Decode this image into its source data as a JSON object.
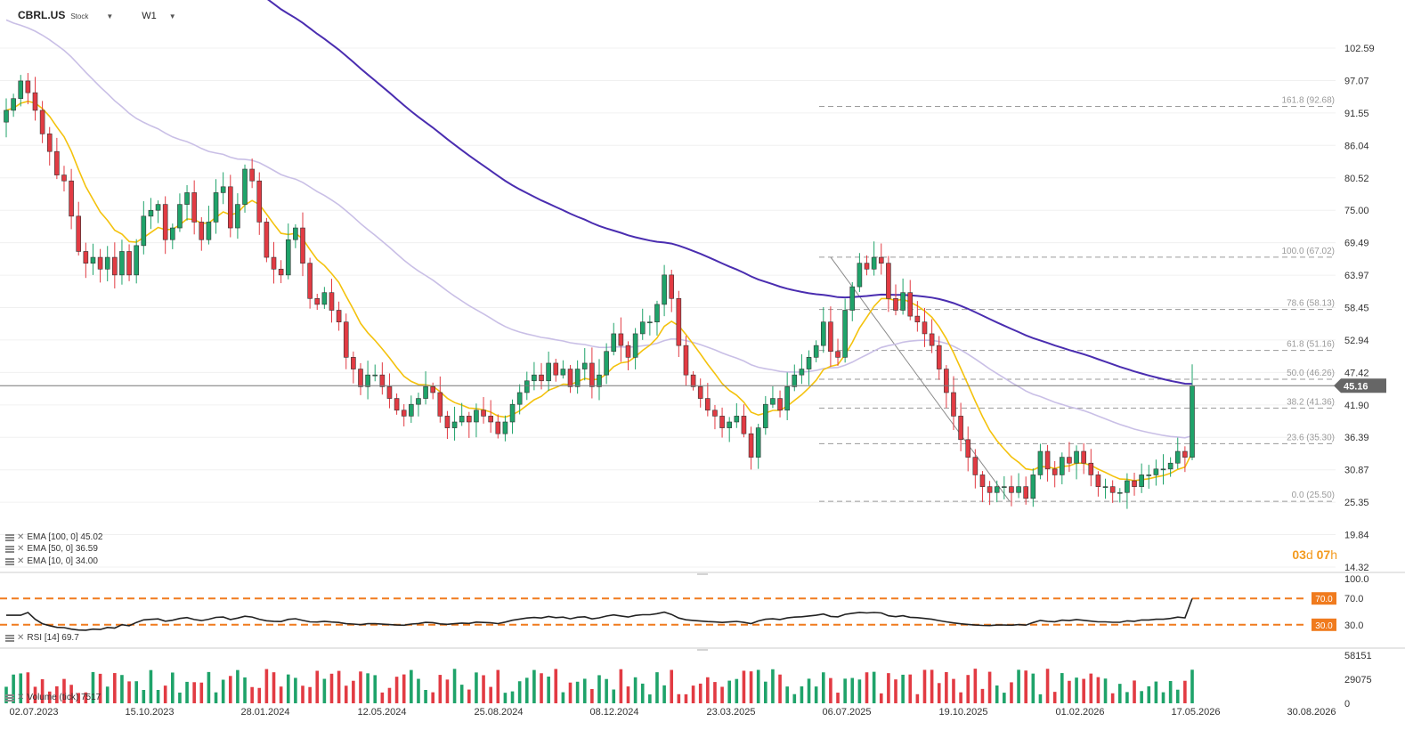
{
  "header": {
    "symbol": "CBRL.US",
    "instrument_type": "Stock",
    "timeframe": "W1"
  },
  "price_axis": {
    "ticks": [
      "102.59",
      "97.07",
      "91.55",
      "86.04",
      "80.52",
      "75.00",
      "69.49",
      "63.97",
      "58.45",
      "52.94",
      "47.42",
      "41.90",
      "36.39",
      "30.87",
      "25.35",
      "19.84",
      "14.32"
    ],
    "current_price": "45.16",
    "current_value": 45.16
  },
  "fibonacci": [
    {
      "label": "161.8 (92.68)",
      "value": 92.68
    },
    {
      "label": "100.0 (67.02)",
      "value": 67.02
    },
    {
      "label": "78.6 (58.13)",
      "value": 58.13
    },
    {
      "label": "61.8 (51.16)",
      "value": 51.16
    },
    {
      "label": "50.0 (46.26)",
      "value": 46.26
    },
    {
      "label": "38.2 (41.36)",
      "value": 41.36
    },
    {
      "label": "23.6 (35.30)",
      "value": 35.3
    },
    {
      "label": "0.0 (25.50)",
      "value": 25.5
    }
  ],
  "indicators": {
    "ema100": "EMA [100, 0] 45.02",
    "ema50": "EMA [50, 0] 36.59",
    "ema10": "EMA [10, 0] 34.00",
    "rsi": "RSI [14] 69.7",
    "volume": "Volume (tick) 7517"
  },
  "countdown": {
    "days": "03",
    "days_unit": "d",
    "hours": "07",
    "hours_unit": "h"
  },
  "rsi_axis": {
    "ticks": [
      "100.0",
      "70.0",
      "30.0"
    ],
    "upper_badge": "70.0",
    "lower_badge": "30.0"
  },
  "volume_axis": {
    "ticks": [
      "58151",
      "29075",
      "0"
    ]
  },
  "x_axis": {
    "labels": [
      "02.07.2023",
      "15.10.2023",
      "28.01.2024",
      "12.05.2024",
      "25.08.2024",
      "08.12.2024",
      "23.03.2025",
      "06.07.2025",
      "19.10.2025",
      "01.02.2026",
      "17.05.2026",
      "30.08.2026"
    ]
  },
  "colors": {
    "up": "#1fa36a",
    "down": "#e23b43",
    "ema100": "#4a2db0",
    "ema50": "#c9bfe6",
    "ema10": "#f4c20d",
    "fib": "#999999",
    "rsi_level": "#f07b1e",
    "price_badge": "#666666"
  },
  "chart_data": {
    "type": "candlestick",
    "interval": "weekly",
    "ylim": [
      14.32,
      102.59
    ],
    "closes": [
      92,
      94,
      97,
      95,
      92,
      88,
      85,
      81,
      80,
      74,
      68,
      66,
      67,
      65,
      67,
      64,
      68,
      64,
      69,
      74,
      75,
      76,
      70,
      72,
      76,
      78,
      73,
      70,
      73,
      78,
      79,
      72,
      76,
      82,
      80,
      73,
      67,
      65,
      64,
      70,
      72,
      66,
      60,
      59,
      61,
      58,
      56,
      50,
      48,
      45,
      47,
      47,
      45,
      43,
      41,
      40,
      42,
      43,
      45,
      44,
      40,
      38,
      39,
      40,
      39,
      41,
      40,
      39,
      37,
      39,
      42,
      44,
      46,
      47,
      46,
      49,
      47,
      48,
      45,
      48,
      49,
      45,
      47,
      51,
      54,
      52,
      50,
      54,
      56,
      56,
      59,
      64,
      60,
      52,
      47,
      45,
      43,
      41,
      40,
      38,
      39,
      40,
      37,
      33,
      38,
      42,
      43,
      41,
      45,
      47,
      48,
      50,
      52,
      56,
      51,
      50,
      58,
      62,
      66,
      65,
      67,
      66,
      60,
      58,
      61,
      57,
      56,
      54,
      52,
      48,
      44,
      40,
      36,
      33,
      30,
      28,
      27,
      28,
      28,
      27,
      28,
      26,
      30,
      34,
      31,
      30,
      33,
      32,
      34,
      32,
      30,
      28,
      28,
      27,
      27,
      29,
      28,
      30,
      30,
      31,
      31,
      32,
      34,
      33,
      45.16
    ],
    "volume_ylim": [
      0,
      58151
    ],
    "rsi_ylim": [
      0,
      100
    ],
    "rsi_levels": [
      70,
      30
    ],
    "ema_legend": {
      "ema100": 45.02,
      "ema50": 36.59,
      "ema10": 34.0
    },
    "rsi_last": 69.7,
    "volume_last": 7517
  }
}
